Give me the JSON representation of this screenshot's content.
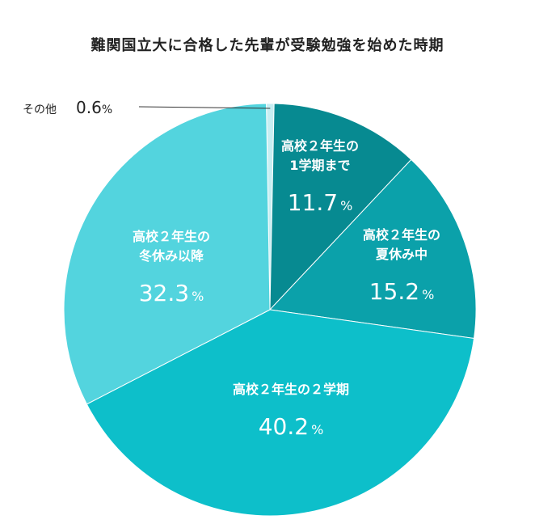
{
  "chart_data": {
    "type": "pie",
    "title": "難関国立大に合格した先輩が受験勉強を始めた時期",
    "unit": "%",
    "start_angle_deg": -1.0,
    "direction": "clockwise",
    "slices": [
      {
        "name": "slice-other",
        "label_lines": [
          "その他"
        ],
        "value": 0.6,
        "value_text": "0.6",
        "color": "#c6eef2"
      },
      {
        "name": "slice-term1",
        "label_lines": [
          "高校２年生の",
          "1学期まで"
        ],
        "value": 11.7,
        "value_text": "11.7",
        "color": "#078a91"
      },
      {
        "name": "slice-summer",
        "label_lines": [
          "高校２年生の",
          "夏休み中"
        ],
        "value": 15.2,
        "value_text": "15.2",
        "color": "#0ba1aa"
      },
      {
        "name": "slice-term2",
        "label_lines": [
          "高校２年生の２学期"
        ],
        "value": 40.2,
        "value_text": "40.2",
        "color": "#0dbfca"
      },
      {
        "name": "slice-winter",
        "label_lines": [
          "高校２年生の",
          "冬休み以降"
        ],
        "value": 32.3,
        "value_text": "32.3",
        "color": "#53d4de"
      }
    ]
  }
}
